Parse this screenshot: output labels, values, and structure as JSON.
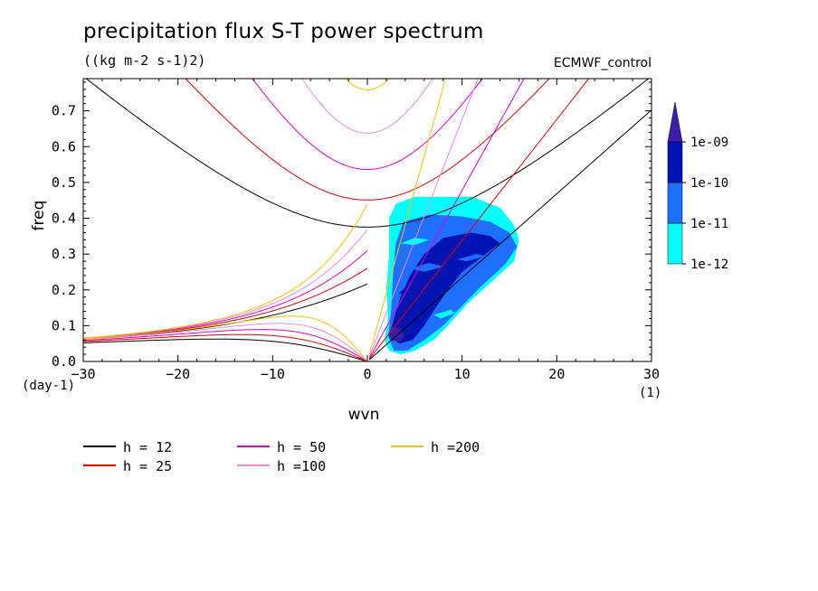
{
  "chart_data": {
    "type": "contour",
    "title": "precipitation flux S-T power spectrum",
    "subtitle": "((kg m-2 s-1)2)",
    "source_label": "ECMWF_control",
    "xlabel": "wvn",
    "ylabel": "freq",
    "x_unit": "(1)",
    "y_unit": "(day-1)",
    "xlim": [
      -30,
      30
    ],
    "ylim": [
      0,
      0.79
    ],
    "xticks": [
      -30,
      -20,
      -10,
      0,
      10,
      20,
      30
    ],
    "yticks": [
      0.0,
      0.1,
      0.2,
      0.3,
      0.4,
      0.5,
      0.6,
      0.7
    ],
    "colorbar": {
      "labels": [
        "1e-09",
        "1e-10",
        "1e-11",
        "1e-12"
      ],
      "levels": [
        {
          "range": "1e-12 to 1e-11",
          "color": "#00ffff"
        },
        {
          "range": "1e-11 to 1e-10",
          "color": "#1e6eff"
        },
        {
          "range": "1e-10 to 1e-09",
          "color": "#0014b4"
        },
        {
          "range": "> 1e-09",
          "color": "#3c1eaa"
        }
      ]
    },
    "series": [
      {
        "name": "h = 12",
        "color": "#000000"
      },
      {
        "name": "h = 25",
        "color": "#e60000"
      },
      {
        "name": "h = 50",
        "color": "#e600c8"
      },
      {
        "name": "h =100",
        "color": "#e68ce6"
      },
      {
        "name": "h =200",
        "color": "#f0c800"
      }
    ],
    "contour_regions": [
      {
        "level": "1e-12",
        "color": "#00ffff",
        "polygon": [
          [
            1.8,
            0.06
          ],
          [
            2.2,
            0.12
          ],
          [
            2.0,
            0.2
          ],
          [
            2.3,
            0.3
          ],
          [
            2.3,
            0.4
          ],
          [
            3.0,
            0.44
          ],
          [
            5.0,
            0.46
          ],
          [
            8.0,
            0.46
          ],
          [
            11.0,
            0.46
          ],
          [
            14.0,
            0.43
          ],
          [
            15.5,
            0.38
          ],
          [
            16.0,
            0.34
          ],
          [
            15.5,
            0.28
          ],
          [
            13.0,
            0.22
          ],
          [
            10.5,
            0.16
          ],
          [
            8.5,
            0.1
          ],
          [
            7.0,
            0.06
          ],
          [
            5.0,
            0.03
          ],
          [
            3.5,
            0.02
          ],
          [
            2.3,
            0.03
          ]
        ]
      },
      {
        "level": "1e-11",
        "color": "#1e6eff",
        "polygon": [
          [
            2.2,
            0.07
          ],
          [
            2.5,
            0.14
          ],
          [
            2.7,
            0.24
          ],
          [
            3.0,
            0.33
          ],
          [
            3.8,
            0.39
          ],
          [
            6.5,
            0.41
          ],
          [
            10.0,
            0.405
          ],
          [
            13.0,
            0.39
          ],
          [
            15.0,
            0.36
          ],
          [
            15.8,
            0.32
          ],
          [
            14.5,
            0.27
          ],
          [
            12.0,
            0.21
          ],
          [
            9.8,
            0.15
          ],
          [
            8.0,
            0.1
          ],
          [
            6.0,
            0.06
          ],
          [
            4.2,
            0.03
          ],
          [
            2.8,
            0.03
          ]
        ]
      },
      {
        "level": "1e-10",
        "color": "#0014b4",
        "polygon": [
          [
            2.3,
            0.07
          ],
          [
            2.8,
            0.12
          ],
          [
            3.5,
            0.18
          ],
          [
            4.5,
            0.24
          ],
          [
            6.0,
            0.3
          ],
          [
            8.0,
            0.345
          ],
          [
            11.0,
            0.36
          ],
          [
            13.0,
            0.35
          ],
          [
            14.0,
            0.33
          ],
          [
            12.0,
            0.29
          ],
          [
            10.0,
            0.25
          ],
          [
            8.5,
            0.2
          ],
          [
            7.2,
            0.15
          ],
          [
            6.0,
            0.1
          ],
          [
            4.8,
            0.06
          ],
          [
            3.4,
            0.05
          ]
        ]
      },
      {
        "level": "1e-09",
        "color": "#3c1eaa",
        "polygon": [
          [
            2.2,
            0.075
          ],
          [
            2.6,
            0.095
          ],
          [
            3.5,
            0.095
          ],
          [
            3.9,
            0.07
          ],
          [
            3.4,
            0.055
          ],
          [
            2.6,
            0.058
          ]
        ]
      }
    ],
    "contour_highlights": [
      {
        "color": "#1e6eff",
        "polygon": [
          [
            5.5,
            0.37
          ],
          [
            8.0,
            0.385
          ],
          [
            11.5,
            0.38
          ],
          [
            12.5,
            0.365
          ],
          [
            9.5,
            0.36
          ],
          [
            6.5,
            0.36
          ]
        ]
      },
      {
        "color": "#00ffff",
        "polygon": [
          [
            3.5,
            0.33
          ],
          [
            5.0,
            0.345
          ],
          [
            6.5,
            0.34
          ],
          [
            5.0,
            0.325
          ]
        ]
      },
      {
        "color": "#1e6eff",
        "polygon": [
          [
            4.5,
            0.26
          ],
          [
            6.5,
            0.275
          ],
          [
            8.0,
            0.265
          ],
          [
            6.0,
            0.25
          ]
        ]
      },
      {
        "color": "#0014b4",
        "polygon": [
          [
            3.3,
            0.19
          ],
          [
            4.6,
            0.22
          ],
          [
            5.5,
            0.215
          ],
          [
            4.3,
            0.185
          ]
        ]
      },
      {
        "color": "#1e6eff",
        "polygon": [
          [
            9.5,
            0.285
          ],
          [
            11.5,
            0.3
          ],
          [
            12.5,
            0.295
          ],
          [
            10.5,
            0.28
          ]
        ]
      },
      {
        "color": "#00ffff",
        "polygon": [
          [
            7.0,
            0.13
          ],
          [
            8.8,
            0.145
          ],
          [
            9.2,
            0.135
          ],
          [
            7.8,
            0.12
          ]
        ]
      }
    ]
  },
  "legend": [
    {
      "label": "h = 12",
      "color": "#000000"
    },
    {
      "label": "h = 25",
      "color": "#e60000"
    },
    {
      "label": "h = 50",
      "color": "#e600c8"
    },
    {
      "label": "h =100",
      "color": "#e68ce6"
    },
    {
      "label": "h =200",
      "color": "#f0c800"
    }
  ]
}
